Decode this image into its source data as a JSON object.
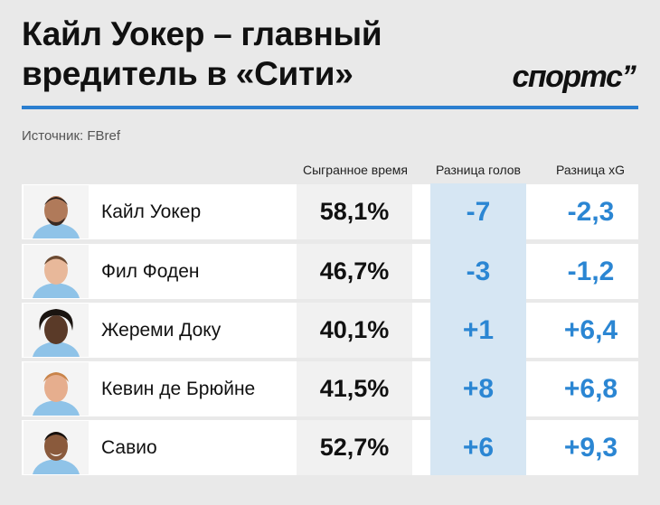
{
  "header": {
    "title_line1": "Кайл Уокер – главный",
    "title_line2": "вредитель в «Сити»",
    "logo": "спортс’’",
    "accent_color": "#2b7fd0"
  },
  "source": "Источник: FBref",
  "columns": {
    "time": "Сыгранное время",
    "goals": "Разница голов",
    "xg": "Разница xG"
  },
  "value_color": "#2b86d3",
  "rows": [
    {
      "name": "Кайл Уокер",
      "time": "58,1%",
      "goals": "-7",
      "xg": "-2,3"
    },
    {
      "name": "Фил Фоден",
      "time": "46,7%",
      "goals": "-3",
      "xg": "-1,2"
    },
    {
      "name": "Жереми Доку",
      "time": "40,1%",
      "goals": "+1",
      "xg": "+6,4"
    },
    {
      "name": "Кевин де Брюйне",
      "time": "41,5%",
      "goals": "+8",
      "xg": "+6,8"
    },
    {
      "name": "Савио",
      "time": "52,7%",
      "goals": "+6",
      "xg": "+9,3"
    }
  ]
}
